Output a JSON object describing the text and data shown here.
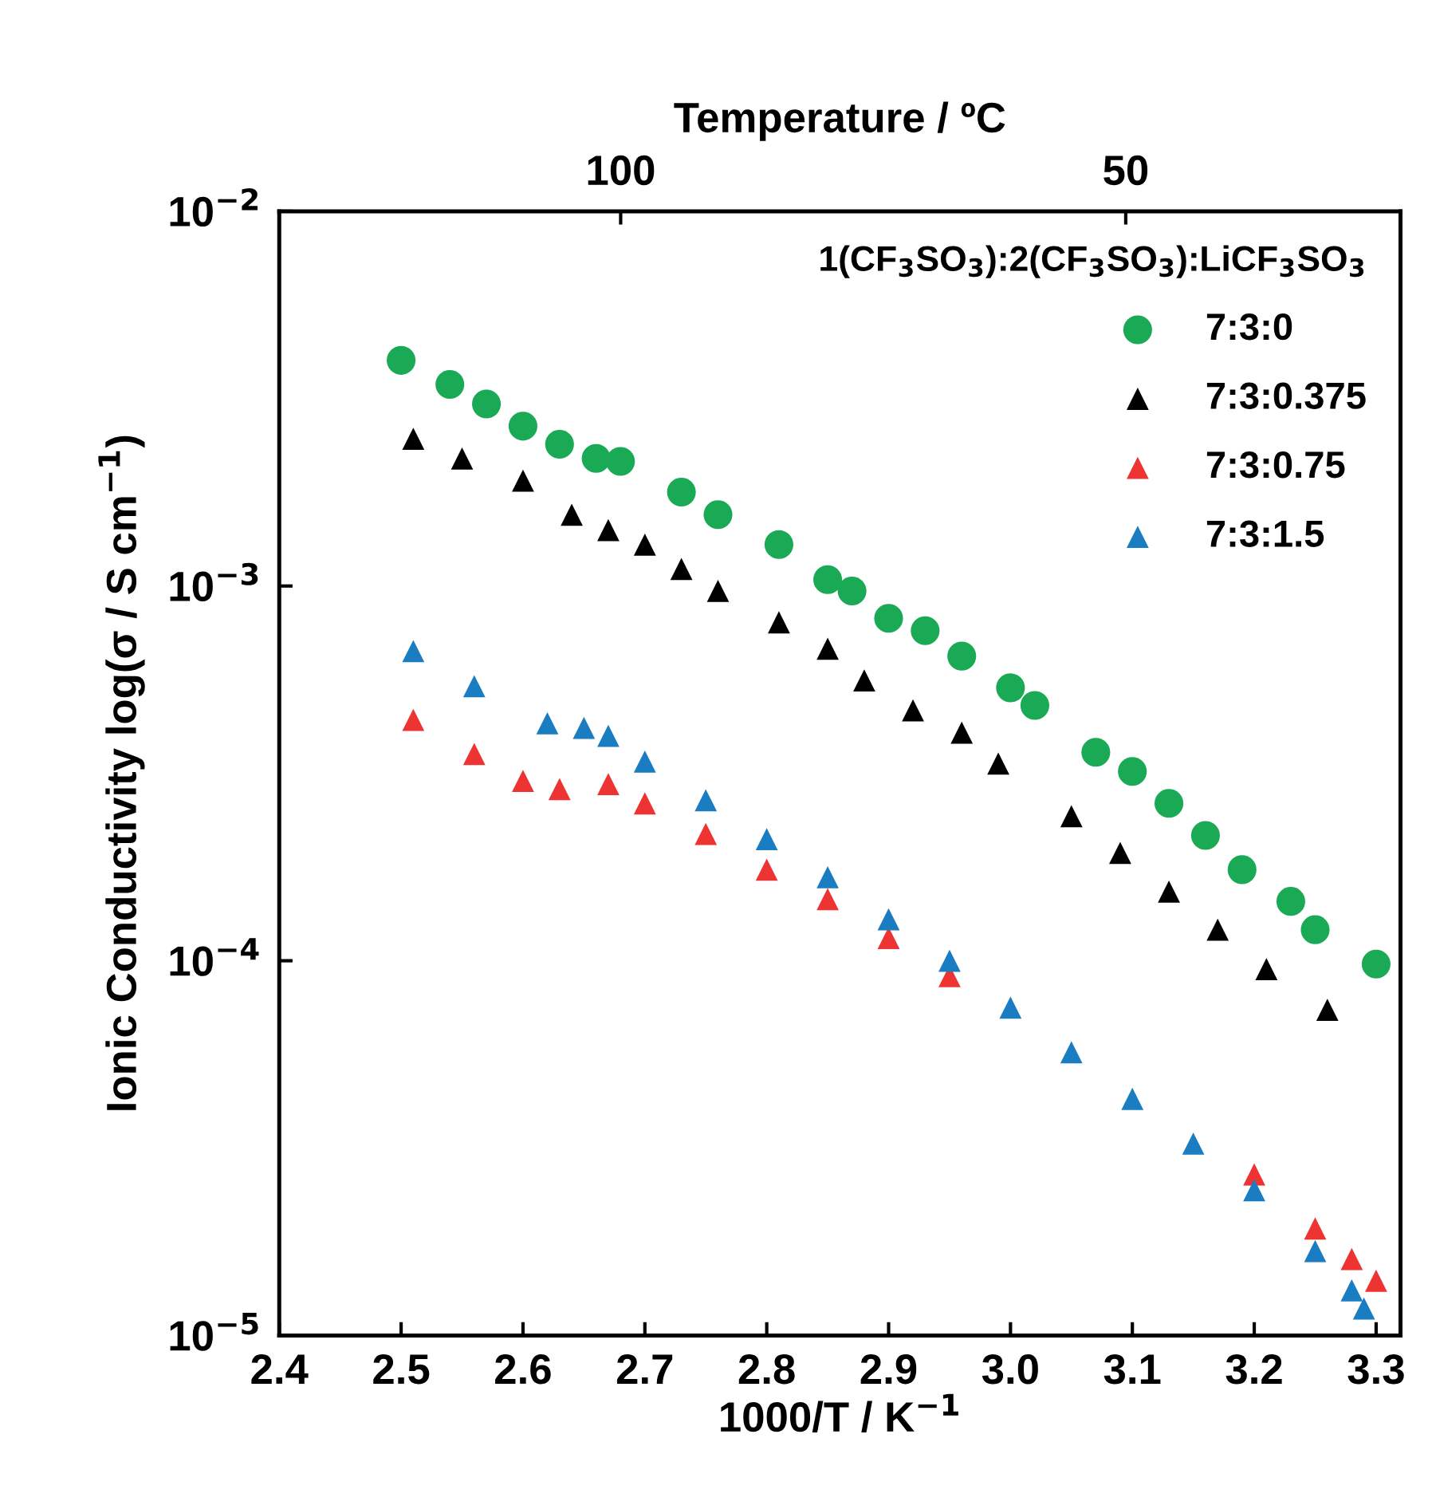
{
  "chart_data": {
    "type": "scatter",
    "xlabel": "1000/T / K$^{−1}$",
    "ylabel": "Ionic Conductivity log(σ / S cm$^{−1}$)",
    "x2label": "Temperature / ºC",
    "legend_title": "1(CF$_{3}$SO$_{3}$):2(CF$_{3}$SO$_{3}$):LiCF$_{3}$SO$_{3}$",
    "xlim": [
      2.4,
      3.32
    ],
    "xticks": [
      2.4,
      2.5,
      2.6,
      2.7,
      2.8,
      2.9,
      {
        "value": 3.0,
        "label": "3.0"
      },
      3.1,
      3.2,
      3.3
    ],
    "x2ticks": [
      100,
      50
    ],
    "x2lim": [
      133.8,
      22.8
    ],
    "log": "y",
    "ylim": [
      1e-05,
      0.01
    ],
    "yticks": [
      {
        "value": 1e-05,
        "label": "10$^{−5}$"
      },
      {
        "value": 0.0001,
        "label": "10$^{−4}$"
      },
      {
        "value": 0.001,
        "label": "10$^{−3}$"
      },
      {
        "value": 0.01,
        "label": "10$^{−2}$"
      }
    ],
    "grid": false,
    "legend": "top right",
    "series": [
      {
        "name": "7:3:0",
        "color": "#1aaa55",
        "marker": "circle",
        "x": [
          2.5,
          2.54,
          2.57,
          2.6,
          2.63,
          2.66,
          2.68,
          2.73,
          2.76,
          2.81,
          2.85,
          2.87,
          2.9,
          2.93,
          2.96,
          3.0,
          3.02,
          3.07,
          3.1,
          3.13,
          3.16,
          3.19,
          3.23,
          3.25,
          3.3
        ],
        "values": [
          0.004,
          0.00345,
          0.00306,
          0.00267,
          0.00239,
          0.00219,
          0.00215,
          0.00178,
          0.00155,
          0.00129,
          0.00104,
          0.00097,
          0.00082,
          0.00076,
          0.00065,
          0.000535,
          0.00048,
          0.00036,
          0.00032,
          0.000263,
          0.000216,
          0.000175,
          0.000144,
          0.000121,
          9.8e-05
        ]
      },
      {
        "name": "7:3:0.375",
        "color": "#000000",
        "marker": "triangle",
        "x": [
          2.51,
          2.55,
          2.6,
          2.64,
          2.67,
          2.7,
          2.73,
          2.76,
          2.81,
          2.85,
          2.88,
          2.92,
          2.96,
          2.99,
          3.05,
          3.09,
          3.13,
          3.17,
          3.21,
          3.26
        ],
        "values": [
          0.00247,
          0.00219,
          0.00191,
          0.00155,
          0.00141,
          0.00129,
          0.00111,
          0.00097,
          0.0008,
          0.00068,
          0.00056,
          0.000466,
          0.000406,
          0.000336,
          0.000243,
          0.000194,
          0.000153,
          0.000121,
          9.5e-05,
          7.4e-05
        ]
      },
      {
        "name": "7:3:0.75",
        "color": "#ee3333",
        "marker": "triangle",
        "x": [
          2.51,
          2.56,
          2.6,
          2.63,
          2.67,
          2.7,
          2.75,
          2.8,
          2.85,
          2.9,
          2.95,
          3.0,
          3.05,
          3.1,
          3.15,
          3.2,
          3.25,
          3.28,
          3.3
        ],
        "values": [
          0.000439,
          0.000356,
          0.000302,
          0.000287,
          0.000296,
          0.000263,
          0.000218,
          0.000175,
          0.000146,
          0.000115,
          9.1e-05,
          null,
          null,
          null,
          null,
          2.69e-05,
          1.93e-05,
          1.6e-05,
          1.4e-05
        ]
      },
      {
        "name": "7:3:1.5",
        "color": "#1a7cc1",
        "marker": "triangle",
        "x": [
          2.51,
          2.56,
          2.62,
          2.65,
          2.67,
          2.7,
          2.75,
          2.8,
          2.85,
          2.9,
          2.95,
          3.0,
          3.05,
          3.1,
          3.15,
          3.2,
          3.25,
          3.28,
          3.29
        ],
        "values": [
          0.00067,
          0.00054,
          0.00043,
          0.000418,
          0.000398,
          0.00034,
          0.000268,
          0.000211,
          0.000167,
          0.000129,
          0.0001,
          7.5e-05,
          5.7e-05,
          4.28e-05,
          3.25e-05,
          2.44e-05,
          1.68e-05,
          1.32e-05,
          1.18e-05
        ]
      }
    ]
  }
}
